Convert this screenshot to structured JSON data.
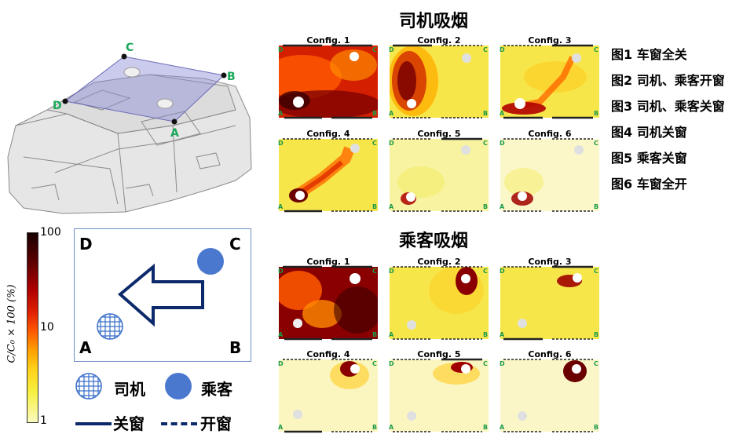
{
  "driver_section_title": "司机吸烟",
  "passenger_section_title": "乘客吸烟",
  "config_legend": [
    "图1 车窗全关",
    "图2 司机、乘客开窗",
    "图3 司机、乘客关窗",
    "图4 司机关窗",
    "图5 乘客关窗",
    "图6 车窗全开"
  ],
  "driver_maps": [
    {
      "title": "Config. 1"
    },
    {
      "title": "Config. 2"
    },
    {
      "title": "Config. 3"
    },
    {
      "title": "Config. 4"
    },
    {
      "title": "Config. 5"
    },
    {
      "title": "Config. 6"
    }
  ],
  "passenger_maps": [
    {
      "title": "Config. 1"
    },
    {
      "title": "Config. 2"
    },
    {
      "title": "Config. 3"
    },
    {
      "title": "Config. 4"
    },
    {
      "title": "Config. 5"
    },
    {
      "title": "Config. 6"
    }
  ],
  "corners": {
    "a": "A",
    "b": "B",
    "c": "C",
    "d": "D"
  },
  "car_labels": {
    "a": "A",
    "b": "B",
    "c": "C",
    "d": "D"
  },
  "colorbar": {
    "label": "C/C₀ × 100 (%)",
    "tick_top": "100",
    "tick_mid": "10",
    "tick_bottom": "1"
  },
  "diagram": {
    "a": "A",
    "b": "B",
    "c": "C",
    "d": "D"
  },
  "key": {
    "driver": "司机",
    "passenger": "乘客",
    "closed": "关窗",
    "open": "开窗"
  },
  "colors": {
    "driver_hatch": "#3a6fc9",
    "passenger_fill": "#4a78cf",
    "arrow": "#0c2a6b",
    "window_line": "#0c2a6b",
    "corner_green": "#1a9a4a"
  }
}
